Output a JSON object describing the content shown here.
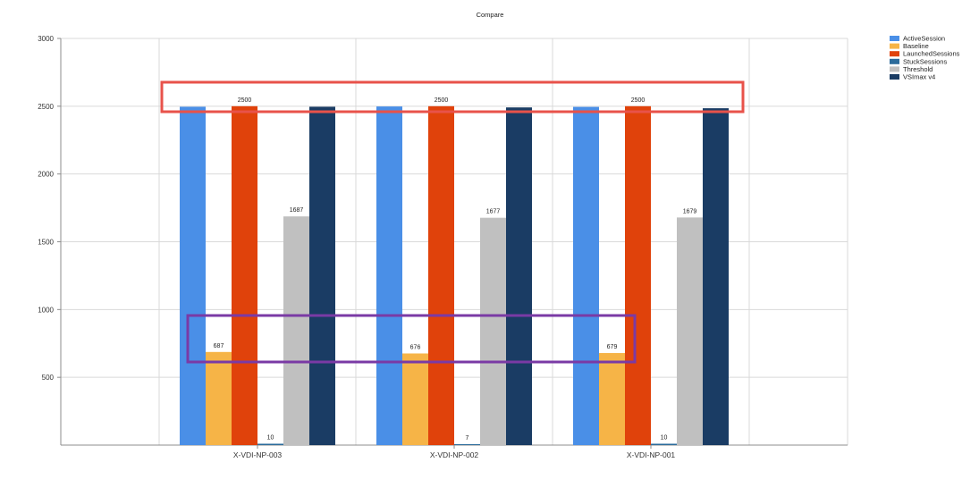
{
  "colors": {
    "ActiveSession": "#4a8fe7",
    "Baseline": "#f6b447",
    "LaunchedSessions": "#e0420b",
    "StuckSessions": "#2b6b9b",
    "Threshold": "#c0c0c0",
    "VSImax v4": "#1a3c64",
    "grid": "#d9d9d9",
    "axis": "#8c8c8c",
    "highlight_red": "#e8524a",
    "highlight_purple": "#7a3aa5"
  },
  "chart_data": {
    "type": "bar",
    "title": "Compare",
    "xlabel": "",
    "ylabel": "",
    "ylim": [
      0,
      3000
    ],
    "yticks": [
      500,
      1000,
      1500,
      2000,
      2500,
      3000
    ],
    "grid": true,
    "legend_position": "top-right",
    "categories": [
      "X-VDI-NP-003",
      "X-VDI-NP-002",
      "X-VDI-NP-001"
    ],
    "series": [
      {
        "name": "ActiveSession",
        "values": [
          2496,
          2498,
          2495
        ],
        "labels": [
          "2496",
          "2498",
          "2495"
        ]
      },
      {
        "name": "Baseline",
        "values": [
          687,
          676,
          679
        ],
        "labels": [
          "687",
          "676",
          "679"
        ]
      },
      {
        "name": "LaunchedSessions",
        "values": [
          2500,
          2500,
          2500
        ],
        "labels": [
          "2500",
          "2500",
          "2500"
        ]
      },
      {
        "name": "StuckSessions",
        "values": [
          10,
          7,
          10
        ],
        "labels": [
          "10",
          "7",
          "10"
        ]
      },
      {
        "name": "Threshold",
        "values": [
          1687,
          1677,
          1679
        ],
        "labels": [
          "1687",
          "1677",
          "1679"
        ]
      },
      {
        "name": "VSImax v4",
        "values": [
          2496,
          2491,
          2485
        ],
        "labels": [
          "2496",
          "2491",
          "2485"
        ]
      }
    ],
    "label_hidden": [
      [
        true,
        false,
        false,
        false,
        false,
        true
      ],
      [
        true,
        false,
        false,
        false,
        false,
        true
      ],
      [
        true,
        false,
        false,
        false,
        false,
        true
      ]
    ],
    "annotations": [
      {
        "type": "highlight-box",
        "color": "red",
        "encloses": "values near 2500"
      },
      {
        "type": "highlight-box",
        "color": "purple",
        "encloses": "Baseline values"
      }
    ]
  }
}
